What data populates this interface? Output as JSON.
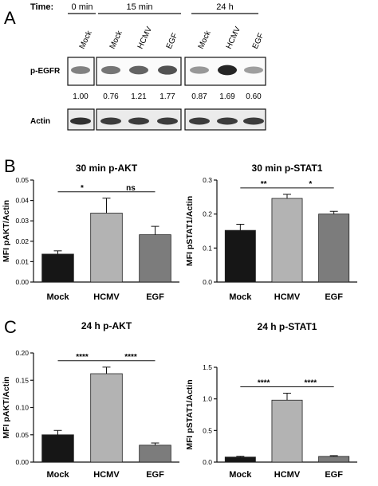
{
  "panel_labels": [
    "A",
    "B",
    "C"
  ],
  "western": {
    "time_label": "Time:",
    "time_groups": [
      "0 min",
      "15 min",
      "24 h"
    ],
    "lane_labels": [
      "Mock",
      "Mock",
      "HCMV",
      "EGF",
      "Mock",
      "HCMV",
      "EGF"
    ],
    "row_labels": [
      "p-EGFR",
      "Actin"
    ],
    "ratios": [
      "1.00",
      "0.76",
      "1.21",
      "1.77",
      "0.87",
      "1.69",
      "0.60"
    ],
    "pegfr_intensity": [
      0.55,
      0.6,
      0.68,
      0.75,
      0.45,
      0.95,
      0.42
    ],
    "actin_intensity": [
      0.9,
      0.85,
      0.85,
      0.85,
      0.85,
      0.85,
      0.85
    ]
  },
  "chart_data": [
    {
      "type": "bar",
      "title": "30 min p-AKT",
      "ylabel": "MFI pAKT/Actin",
      "categories": [
        "Mock",
        "HCMV",
        "EGF"
      ],
      "values": [
        0.0137,
        0.0338,
        0.0232
      ],
      "errors": [
        0.0016,
        0.0073,
        0.0041
      ],
      "colors": [
        "#161616",
        "#b3b3b3",
        "#7c7c7c"
      ],
      "ylim": [
        0,
        0.05
      ],
      "yticks": [
        "0.00",
        "0.01",
        "0.02",
        "0.03",
        "0.04",
        "0.05"
      ],
      "significance": [
        {
          "from": 0,
          "to": 1,
          "label": "*"
        },
        {
          "from": 1,
          "to": 2,
          "label": "ns"
        }
      ]
    },
    {
      "type": "bar",
      "title": "30 min p-STAT1",
      "ylabel": "MFI pSTAT1/Actin",
      "categories": [
        "Mock",
        "HCMV",
        "EGF"
      ],
      "values": [
        0.152,
        0.246,
        0.2
      ],
      "errors": [
        0.018,
        0.012,
        0.008
      ],
      "colors": [
        "#161616",
        "#b3b3b3",
        "#7c7c7c"
      ],
      "ylim": [
        0,
        0.3
      ],
      "yticks": [
        "0.0",
        "0.1",
        "0.2",
        "0.3"
      ],
      "significance": [
        {
          "from": 0,
          "to": 1,
          "label": "**"
        },
        {
          "from": 1,
          "to": 2,
          "label": "*"
        }
      ]
    },
    {
      "type": "bar",
      "title": "24 h p-AKT",
      "ylabel": "MFI pAKT/Actin",
      "categories": [
        "Mock",
        "HCMV",
        "EGF"
      ],
      "values": [
        0.05,
        0.162,
        0.031
      ],
      "errors": [
        0.008,
        0.012,
        0.004
      ],
      "colors": [
        "#161616",
        "#b3b3b3",
        "#7c7c7c"
      ],
      "ylim": [
        0,
        0.2
      ],
      "yticks": [
        "0.00",
        "0.05",
        "0.10",
        "0.15",
        "0.20"
      ],
      "significance": [
        {
          "from": 0,
          "to": 1,
          "label": "****"
        },
        {
          "from": 1,
          "to": 2,
          "label": "****"
        }
      ]
    },
    {
      "type": "bar",
      "title": "24 h p-STAT1",
      "ylabel": "MFI pSTAT1/Actin",
      "categories": [
        "Mock",
        "HCMV",
        "EGF"
      ],
      "values": [
        0.08,
        0.98,
        0.09
      ],
      "errors": [
        0.012,
        0.11,
        0.012
      ],
      "colors": [
        "#161616",
        "#b3b3b3",
        "#7c7c7c"
      ],
      "ylim": [
        0,
        1.5
      ],
      "yticks": [
        "0.0",
        "0.5",
        "1.0",
        "1.5"
      ],
      "significance": [
        {
          "from": 0,
          "to": 1,
          "label": "****"
        },
        {
          "from": 1,
          "to": 2,
          "label": "****"
        }
      ]
    }
  ]
}
